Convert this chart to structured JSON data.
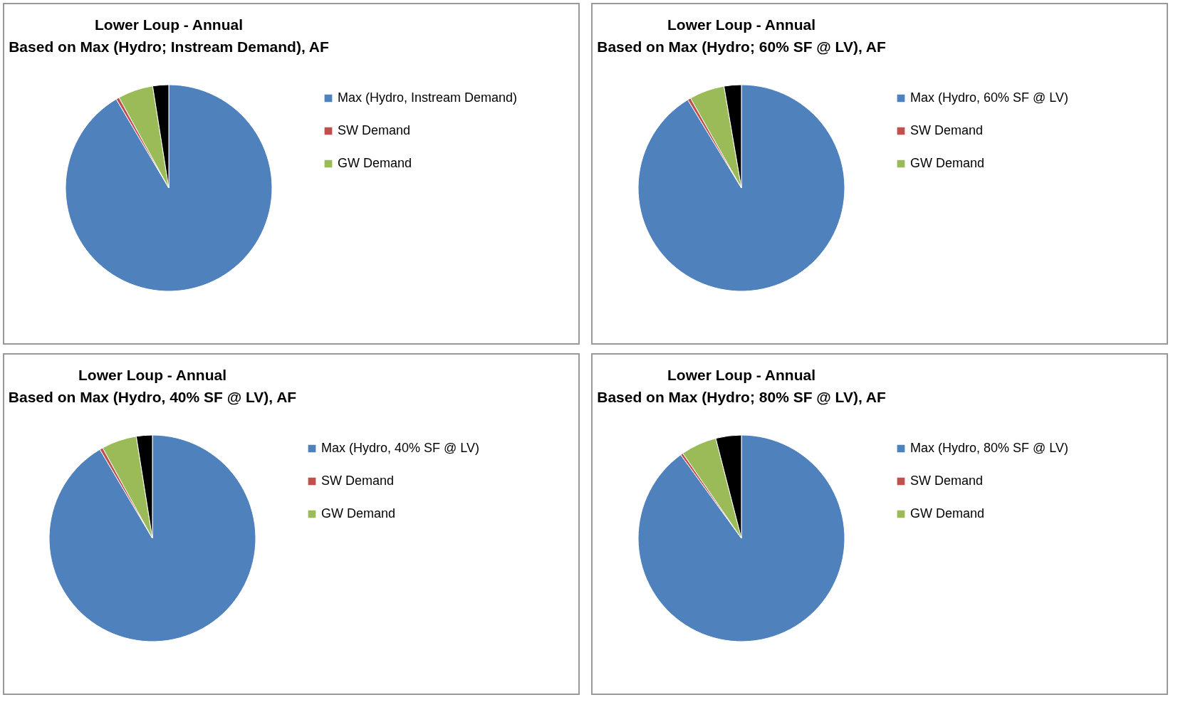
{
  "chart_data": [
    {
      "type": "pie",
      "title": "Lower Loup - Annual",
      "subtitle": "Based on Max (Hydro; Instream Demand), AF",
      "categories": [
        "Max (Hydro, Instream Demand)",
        "SW Demand",
        "GW Demand",
        null
      ],
      "values": [
        91.5,
        0.5,
        5.5,
        2.5
      ],
      "colors": [
        "#4f81bd",
        "#c0504d",
        "#9bbb59",
        "#000000"
      ],
      "legend": "right"
    },
    {
      "type": "pie",
      "title": "Lower Loup - Annual",
      "subtitle": "Based on Max (Hydro; 60% SF @ LV), AF",
      "categories": [
        "Max (Hydro, 60% SF @ LV)",
        "SW Demand",
        "GW Demand",
        null
      ],
      "values": [
        91.3,
        0.5,
        5.5,
        2.7
      ],
      "colors": [
        "#4f81bd",
        "#c0504d",
        "#9bbb59",
        "#000000"
      ],
      "legend": "right"
    },
    {
      "type": "pie",
      "title": "Lower Loup - Annual",
      "subtitle": "Based on Max (Hydro, 40% SF @ LV), AF",
      "categories": [
        "Max (Hydro, 40% SF @ LV)",
        "SW Demand",
        "GW Demand",
        null
      ],
      "values": [
        91.5,
        0.5,
        5.5,
        2.5
      ],
      "colors": [
        "#4f81bd",
        "#c0504d",
        "#9bbb59",
        "#000000"
      ],
      "legend": "right"
    },
    {
      "type": "pie",
      "title": "Lower Loup - Annual",
      "subtitle": "Based on Max (Hydro; 80% SF @ LV), AF",
      "categories": [
        "Max (Hydro, 80% SF @ LV)",
        "SW Demand",
        "GW Demand",
        null
      ],
      "values": [
        90,
        0.4,
        5.6,
        4
      ],
      "colors": [
        "#4f81bd",
        "#c0504d",
        "#9bbb59",
        "#000000"
      ],
      "legend": "right"
    }
  ]
}
